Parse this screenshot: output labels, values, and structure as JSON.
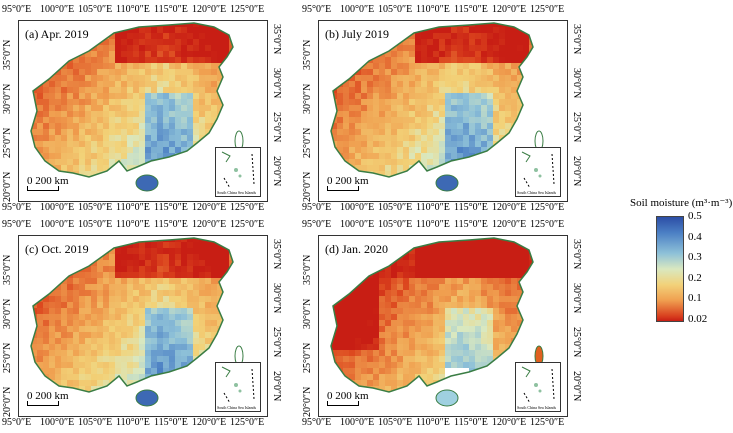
{
  "panels": [
    {
      "label": "(a) Apr. 2019"
    },
    {
      "label": "(b) July 2019"
    },
    {
      "label": "(c) Oct. 2019"
    },
    {
      "label": "(d) Jan. 2020"
    }
  ],
  "lon_ticks": [
    "95°0″E",
    "100°0″E",
    "105°0″E",
    "110°0″E",
    "115°0″E",
    "120°0″E",
    "125°0″E"
  ],
  "lat_ticks": [
    "35°0″N",
    "30°0″N",
    "25°0″N",
    "20°0″N"
  ],
  "scale_label": "0 200 km",
  "inset_label": "South China Sea Islands",
  "legend": {
    "title": "Soil moisture (m³·m⁻³)",
    "ticks": [
      "0.5",
      "0.4",
      "0.3",
      "0.2",
      "0.1",
      "0.02"
    ]
  },
  "colors": {
    "wet": "#2c4ea6",
    "mid": "#8ec1d8",
    "dry": "#f0a050",
    "very_dry": "#c81e14",
    "coast": "#3a7d44"
  }
}
